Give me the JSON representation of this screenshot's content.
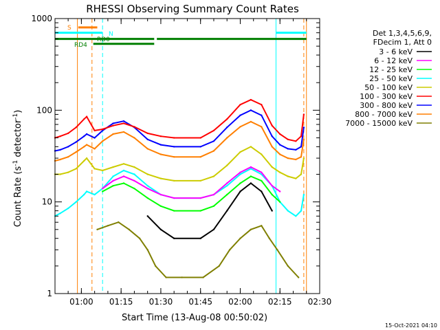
{
  "chart_data": {
    "type": "line",
    "title": "RHESSI Observing Summary Count Rates",
    "xlabel": "Start Time (13-Aug-08 00:50:02)",
    "ylabel": "Count Rate (s⁻¹ detector⁻¹)",
    "ylabel_main": "Count Rate (s",
    "ylabel_sup1": "-1",
    "ylabel_mid": " detector",
    "ylabel_sup2": "-1",
    "ylabel_end": ")",
    "yscale": "log",
    "xlim": [
      "00:50:02",
      "02:30"
    ],
    "ylim": [
      1,
      1000
    ],
    "x_ticks": [
      "01:00",
      "01:15",
      "01:30",
      "01:45",
      "02:00",
      "02:15",
      "02:30"
    ],
    "y_ticks": [
      "1",
      "10",
      "100",
      "1000"
    ],
    "grid": false,
    "legend_position": "right",
    "legend_header": [
      "Det 1,3,4,5,6,9,",
      "FDecim 1, Att 0"
    ],
    "footer_date": "15-Oct-2021 04:10",
    "flag_labels": {
      "S": "S",
      "N": "N",
      "RD0": "RD0",
      "RD4": "RD4"
    },
    "flags": [
      {
        "label": "S",
        "color": "#ff7f00",
        "value": 800,
        "segments": [
          [
            "00:58:50",
            "01:06:00"
          ]
        ]
      },
      {
        "label": "N",
        "color": "#00ffff",
        "value": 700,
        "segments": [
          [
            "00:50:02",
            "01:08:00"
          ],
          [
            "02:13:30",
            "02:25:00"
          ]
        ]
      },
      {
        "label": "RD0",
        "color": "#007f00",
        "value": 600,
        "segments": [
          [
            "00:50:02",
            "01:27:30"
          ],
          [
            "01:28:30",
            "02:25:00"
          ]
        ]
      },
      {
        "label": "RD4",
        "color": "#007f00",
        "value": 530,
        "segments": [
          [
            "01:04:30",
            "01:27:30"
          ]
        ]
      }
    ],
    "vertical_markers": [
      {
        "time": "00:58:30",
        "color": "#ff7f00",
        "style": "solid"
      },
      {
        "time": "01:04:00",
        "color": "#ff7f00",
        "style": "dashed"
      },
      {
        "time": "01:08:00",
        "color": "#00ffff",
        "style": "dashed"
      },
      {
        "time": "02:13:30",
        "color": "#00ffff",
        "style": "solid"
      },
      {
        "time": "02:24:00",
        "color": "#ff7f00",
        "style": "dashed"
      },
      {
        "time": "02:25:00",
        "color": "#ff7f00",
        "style": "solid"
      }
    ],
    "series": [
      {
        "name": "3 - 6 keV",
        "color": "#000000",
        "x": [
          "00:50:02",
          "00:58:00",
          "01:01:00",
          "01:05:00",
          "01:08:00",
          "01:12:00",
          "01:16:00",
          "01:20:00",
          "01:25:00",
          "01:30:00",
          "01:35:00",
          "01:45:00",
          "01:50:00",
          "01:55:00",
          "02:00:00",
          "02:04:00",
          "02:08:00",
          "02:12:00",
          "02:15:00",
          "02:18:00",
          "02:22:00",
          "02:24:00"
        ],
        "values": [
          null,
          null,
          null,
          null,
          null,
          null,
          null,
          null,
          7,
          5,
          4,
          4,
          5,
          8,
          13,
          16,
          13,
          8,
          null,
          null,
          null,
          null
        ]
      },
      {
        "name": "6 - 12 keV",
        "color": "#ff00ff",
        "x": [
          "01:08:00",
          "01:12:00",
          "01:16:00",
          "01:20:00",
          "01:25:00",
          "01:30:00",
          "01:35:00",
          "01:45:00",
          "01:50:00",
          "01:55:00",
          "02:00:00",
          "02:04:00",
          "02:08:00",
          "02:12:00",
          "02:15:00"
        ],
        "values": [
          14,
          17,
          19,
          17,
          14,
          12,
          11,
          11,
          12,
          16,
          21,
          24,
          21,
          15,
          13
        ]
      },
      {
        "name": "12 - 25 keV",
        "color": "#00ff00",
        "x": [
          "01:08:00",
          "01:12:00",
          "01:16:00",
          "01:20:00",
          "01:25:00",
          "01:30:00",
          "01:35:00",
          "01:45:00",
          "01:50:00",
          "01:55:00",
          "02:00:00",
          "02:04:00",
          "02:08:00",
          "02:12:00",
          "02:15:00"
        ],
        "values": [
          13,
          15,
          16,
          14,
          11,
          9,
          8,
          8,
          9,
          12,
          16,
          19,
          17,
          12,
          10
        ]
      },
      {
        "name": "25 - 50 keV",
        "color": "#00ffff",
        "x": [
          "00:50:02",
          "00:52:00",
          "00:55:00",
          "00:58:00",
          "01:01:00",
          "01:02:00",
          "01:05:00",
          "01:08:00",
          "01:12:00",
          "01:16:00",
          "01:20:00",
          "01:25:00",
          "01:30:00",
          "01:35:00",
          "01:45:00",
          "01:50:00",
          "01:55:00",
          "02:00:00",
          "02:04:00",
          "02:08:00",
          "02:12:00",
          "02:15:00",
          "02:18:00",
          "02:21:00",
          "02:23:00",
          "02:24:00"
        ],
        "values": [
          7,
          7.5,
          8.5,
          10,
          12,
          13,
          12,
          14,
          19,
          22,
          20,
          15,
          12,
          11,
          11,
          12,
          15,
          20,
          23,
          20,
          15,
          10,
          8,
          7,
          8,
          12
        ]
      },
      {
        "name": "50 - 100 keV",
        "color": "#cccc00",
        "x": [
          "00:50:02",
          "00:52:00",
          "00:55:00",
          "00:58:00",
          "01:01:00",
          "01:02:00",
          "01:05:00",
          "01:08:00",
          "01:12:00",
          "01:16:00",
          "01:20:00",
          "01:25:00",
          "01:30:00",
          "01:35:00",
          "01:45:00",
          "01:50:00",
          "01:55:00",
          "02:00:00",
          "02:04:00",
          "02:08:00",
          "02:12:00",
          "02:15:00",
          "02:18:00",
          "02:21:00",
          "02:23:00",
          "02:24:00"
        ],
        "values": [
          20,
          20,
          21,
          23,
          28,
          30,
          23,
          22,
          24,
          26,
          24,
          20,
          18,
          17,
          17,
          19,
          25,
          35,
          40,
          33,
          24,
          21,
          19,
          18,
          20,
          30
        ]
      },
      {
        "name": "100 - 300 keV",
        "color": "#ff0000",
        "x": [
          "00:50:02",
          "00:52:00",
          "00:55:00",
          "00:58:00",
          "01:01:00",
          "01:02:00",
          "01:05:00",
          "01:08:00",
          "01:12:00",
          "01:16:00",
          "01:20:00",
          "01:25:00",
          "01:30:00",
          "01:35:00",
          "01:45:00",
          "01:50:00",
          "01:55:00",
          "02:00:00",
          "02:04:00",
          "02:08:00",
          "02:12:00",
          "02:15:00",
          "02:18:00",
          "02:21:00",
          "02:23:00",
          "02:24:00"
        ],
        "values": [
          50,
          52,
          56,
          65,
          80,
          85,
          60,
          62,
          68,
          72,
          66,
          56,
          52,
          50,
          50,
          60,
          80,
          115,
          130,
          115,
          68,
          55,
          48,
          46,
          52,
          90
        ]
      },
      {
        "name": "300 - 800 keV",
        "color": "#0000ff",
        "x": [
          "00:50:02",
          "00:52:00",
          "00:55:00",
          "00:58:00",
          "01:01:00",
          "01:02:00",
          "01:05:00",
          "01:08:00",
          "01:12:00",
          "01:16:00",
          "01:20:00",
          "01:25:00",
          "01:30:00",
          "01:35:00",
          "01:45:00",
          "01:50:00",
          "01:55:00",
          "02:00:00",
          "02:04:00",
          "02:08:00",
          "02:12:00",
          "02:15:00",
          "02:18:00",
          "02:21:00",
          "02:23:00",
          "02:24:00"
        ],
        "values": [
          36,
          37,
          40,
          45,
          52,
          55,
          50,
          60,
          72,
          76,
          65,
          48,
          42,
          40,
          40,
          46,
          65,
          88,
          100,
          88,
          52,
          42,
          38,
          37,
          40,
          65
        ]
      },
      {
        "name": "800 - 7000 keV",
        "color": "#ff7f00",
        "x": [
          "00:50:02",
          "00:52:00",
          "00:55:00",
          "00:58:00",
          "01:01:00",
          "01:02:00",
          "01:05:00",
          "01:08:00",
          "01:12:00",
          "01:16:00",
          "01:20:00",
          "01:25:00",
          "01:30:00",
          "01:35:00",
          "01:45:00",
          "01:50:00",
          "01:55:00",
          "02:00:00",
          "02:04:00",
          "02:08:00",
          "02:12:00",
          "02:15:00",
          "02:18:00",
          "02:21:00",
          "02:23:00",
          "02:24:00"
        ],
        "values": [
          28,
          29,
          31,
          35,
          40,
          42,
          38,
          46,
          55,
          58,
          50,
          38,
          33,
          31,
          31,
          36,
          50,
          66,
          75,
          66,
          40,
          33,
          30,
          29,
          31,
          48
        ]
      },
      {
        "name": "7000 - 15000 keV",
        "color": "#7f7f00",
        "x": [
          "01:06:00",
          "01:10:00",
          "01:14:00",
          "01:18:00",
          "01:22:00",
          "01:25:00",
          "01:28:00",
          "01:32:00",
          "01:38:00",
          "01:46:00",
          "01:52:00",
          "01:56:00",
          "02:00:00",
          "02:04:00",
          "02:08:00",
          "02:11:00",
          "02:14:00",
          "02:18:00",
          "02:22:00"
        ],
        "values": [
          5,
          5.5,
          6,
          5,
          4,
          3,
          2,
          1.5,
          1.5,
          1.5,
          2,
          3,
          4,
          5,
          5.5,
          4,
          3,
          2,
          1.5
        ]
      }
    ]
  }
}
